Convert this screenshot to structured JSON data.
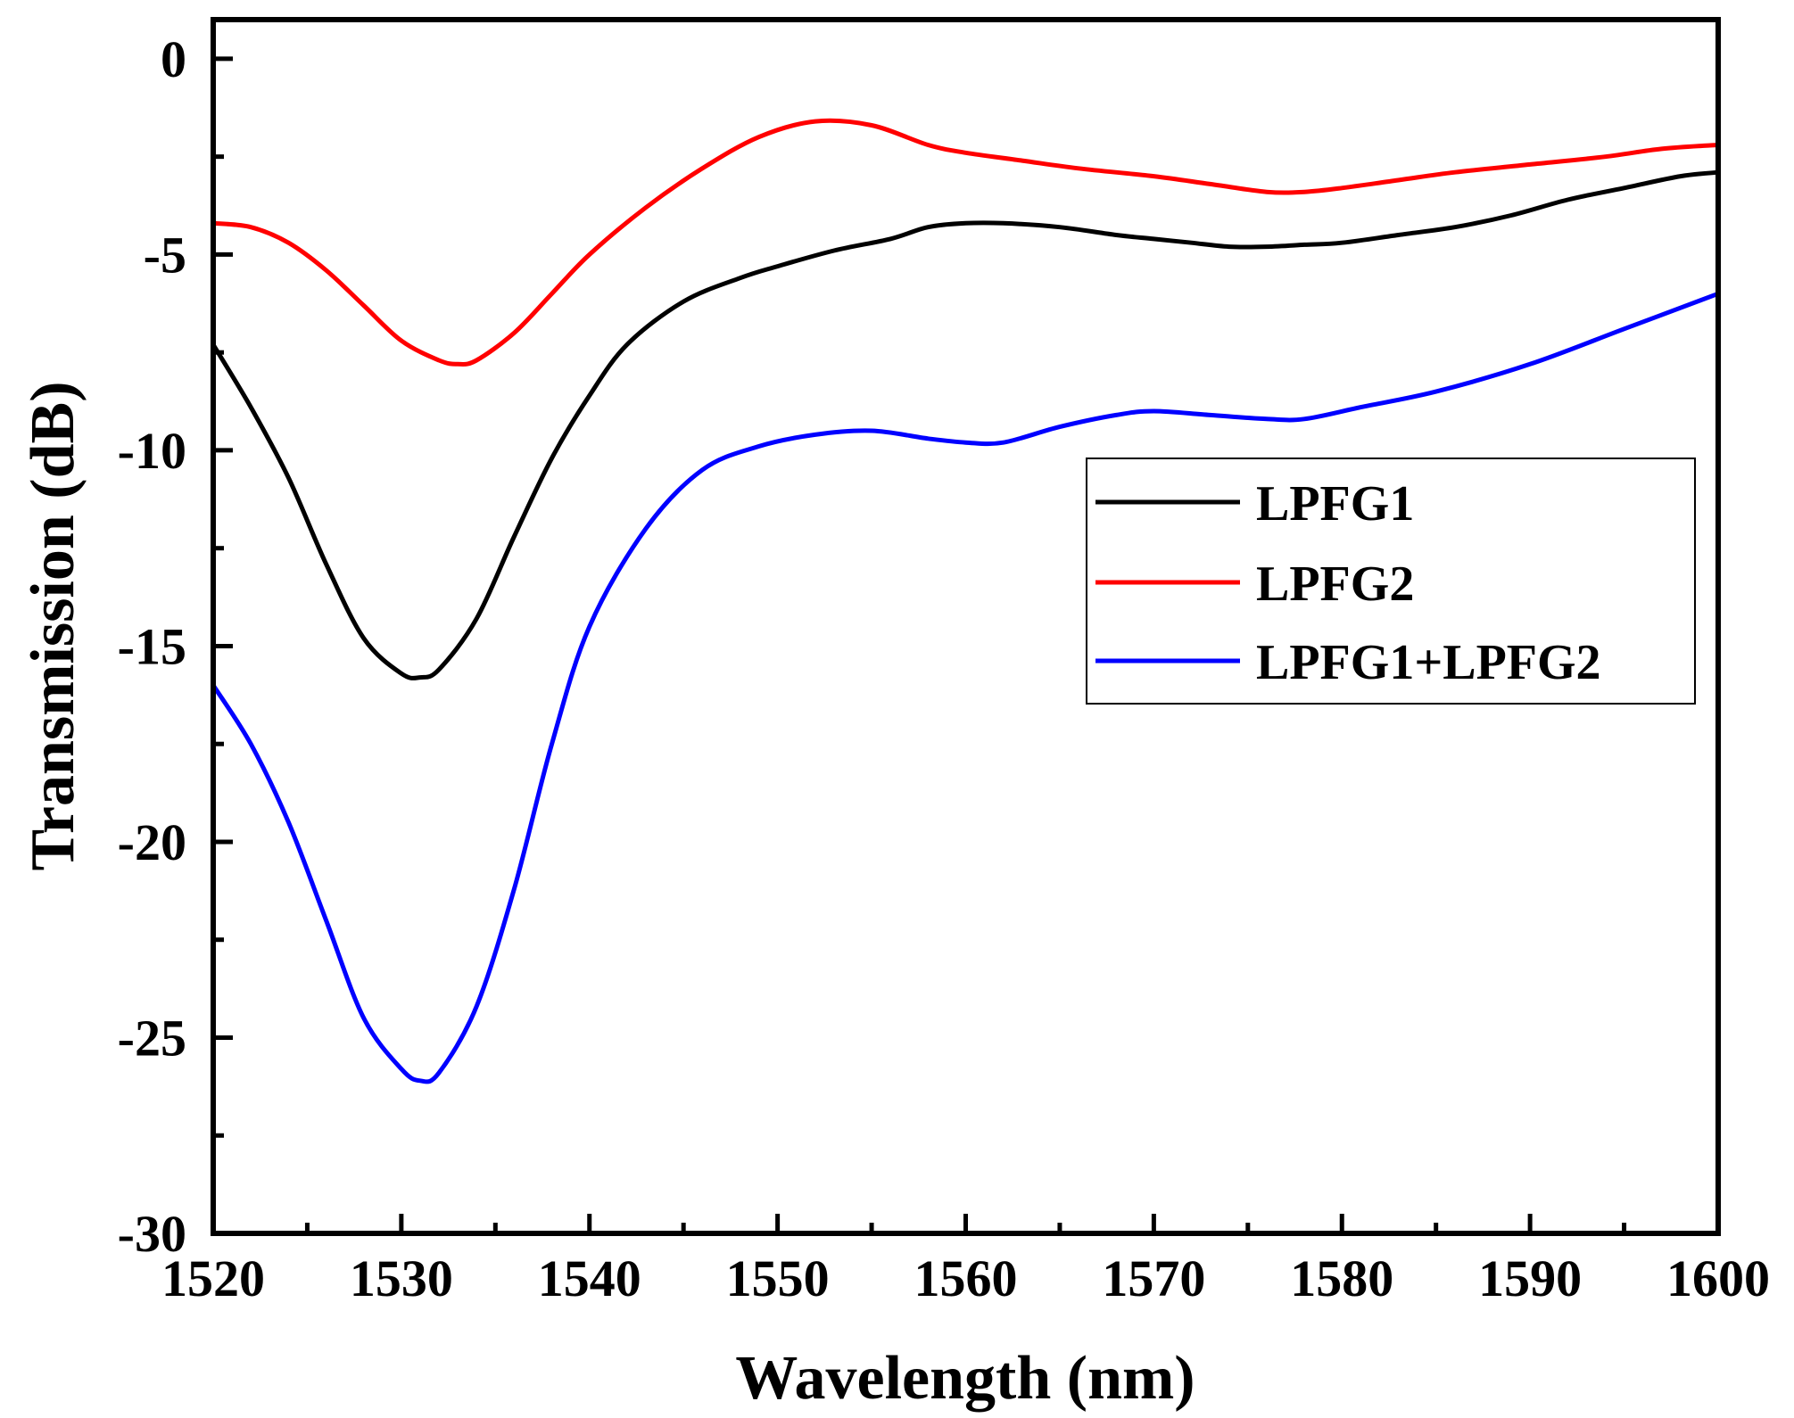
{
  "chart_data": {
    "type": "line",
    "title": "",
    "xlabel": "Wavelength (nm)",
    "ylabel": "Transmission (dB)",
    "xlim": [
      1520,
      1600
    ],
    "ylim": [
      -30,
      1
    ],
    "xticks": [
      1520,
      1530,
      1540,
      1550,
      1560,
      1570,
      1580,
      1590,
      1600
    ],
    "yticks": [
      0,
      -5,
      -10,
      -15,
      -20,
      -25,
      -30
    ],
    "xtick_labels": [
      "1520",
      "1530",
      "1540",
      "1550",
      "1560",
      "1570",
      "1580",
      "1590",
      "1600"
    ],
    "ytick_labels": [
      "0",
      "-5",
      "-10",
      "-15",
      "-20",
      "-25",
      "-30"
    ],
    "grid": false,
    "legend_position": "right-middle",
    "series": [
      {
        "name": "LPFG1",
        "color": "#000000",
        "x": [
          1520,
          1522,
          1524,
          1526,
          1528,
          1530,
          1531,
          1532,
          1534,
          1536,
          1538,
          1540,
          1542,
          1545,
          1548,
          1550,
          1553,
          1556,
          1558,
          1560,
          1562,
          1565,
          1568,
          1570,
          1572,
          1574,
          1576,
          1578,
          1580,
          1583,
          1586,
          1589,
          1592,
          1595,
          1598,
          1600
        ],
        "y": [
          -7.3,
          -8.9,
          -10.7,
          -12.9,
          -14.8,
          -15.7,
          -15.8,
          -15.6,
          -14.3,
          -12.2,
          -10.2,
          -8.6,
          -7.3,
          -6.2,
          -5.6,
          -5.3,
          -4.9,
          -4.6,
          -4.3,
          -4.2,
          -4.2,
          -4.3,
          -4.5,
          -4.6,
          -4.7,
          -4.8,
          -4.8,
          -4.75,
          -4.7,
          -4.5,
          -4.3,
          -4.0,
          -3.6,
          -3.3,
          -3.0,
          -2.9
        ]
      },
      {
        "name": "LPFG2",
        "color": "#ff0000",
        "x": [
          1520,
          1522,
          1524,
          1526,
          1528,
          1530,
          1532,
          1533,
          1534,
          1536,
          1538,
          1540,
          1543,
          1546,
          1549,
          1552,
          1555,
          1558,
          1560,
          1563,
          1566,
          1570,
          1573,
          1576,
          1578,
          1580,
          1583,
          1586,
          1590,
          1594,
          1597,
          1600
        ],
        "y": [
          -4.2,
          -4.3,
          -4.7,
          -5.4,
          -6.3,
          -7.2,
          -7.7,
          -7.8,
          -7.7,
          -7.0,
          -6.0,
          -5.0,
          -3.8,
          -2.8,
          -2.0,
          -1.6,
          -1.7,
          -2.2,
          -2.4,
          -2.6,
          -2.8,
          -3.0,
          -3.2,
          -3.4,
          -3.4,
          -3.3,
          -3.1,
          -2.9,
          -2.7,
          -2.5,
          -2.3,
          -2.2
        ]
      },
      {
        "name": "LPFG1+LPFG2",
        "color": "#0000ff",
        "x": [
          1520,
          1522,
          1524,
          1526,
          1528,
          1530,
          1531,
          1532,
          1534,
          1536,
          1538,
          1540,
          1543,
          1546,
          1549,
          1552,
          1555,
          1558,
          1560,
          1562,
          1565,
          1568,
          1570,
          1573,
          1576,
          1578,
          1581,
          1585,
          1590,
          1595,
          1600
        ],
        "y": [
          -16.0,
          -17.5,
          -19.5,
          -22.0,
          -24.5,
          -25.8,
          -26.1,
          -25.9,
          -24.2,
          -21.2,
          -17.5,
          -14.5,
          -12.0,
          -10.5,
          -9.9,
          -9.6,
          -9.5,
          -9.7,
          -9.8,
          -9.8,
          -9.4,
          -9.1,
          -9.0,
          -9.1,
          -9.2,
          -9.2,
          -8.9,
          -8.5,
          -7.8,
          -6.9,
          -6.0
        ]
      }
    ]
  }
}
